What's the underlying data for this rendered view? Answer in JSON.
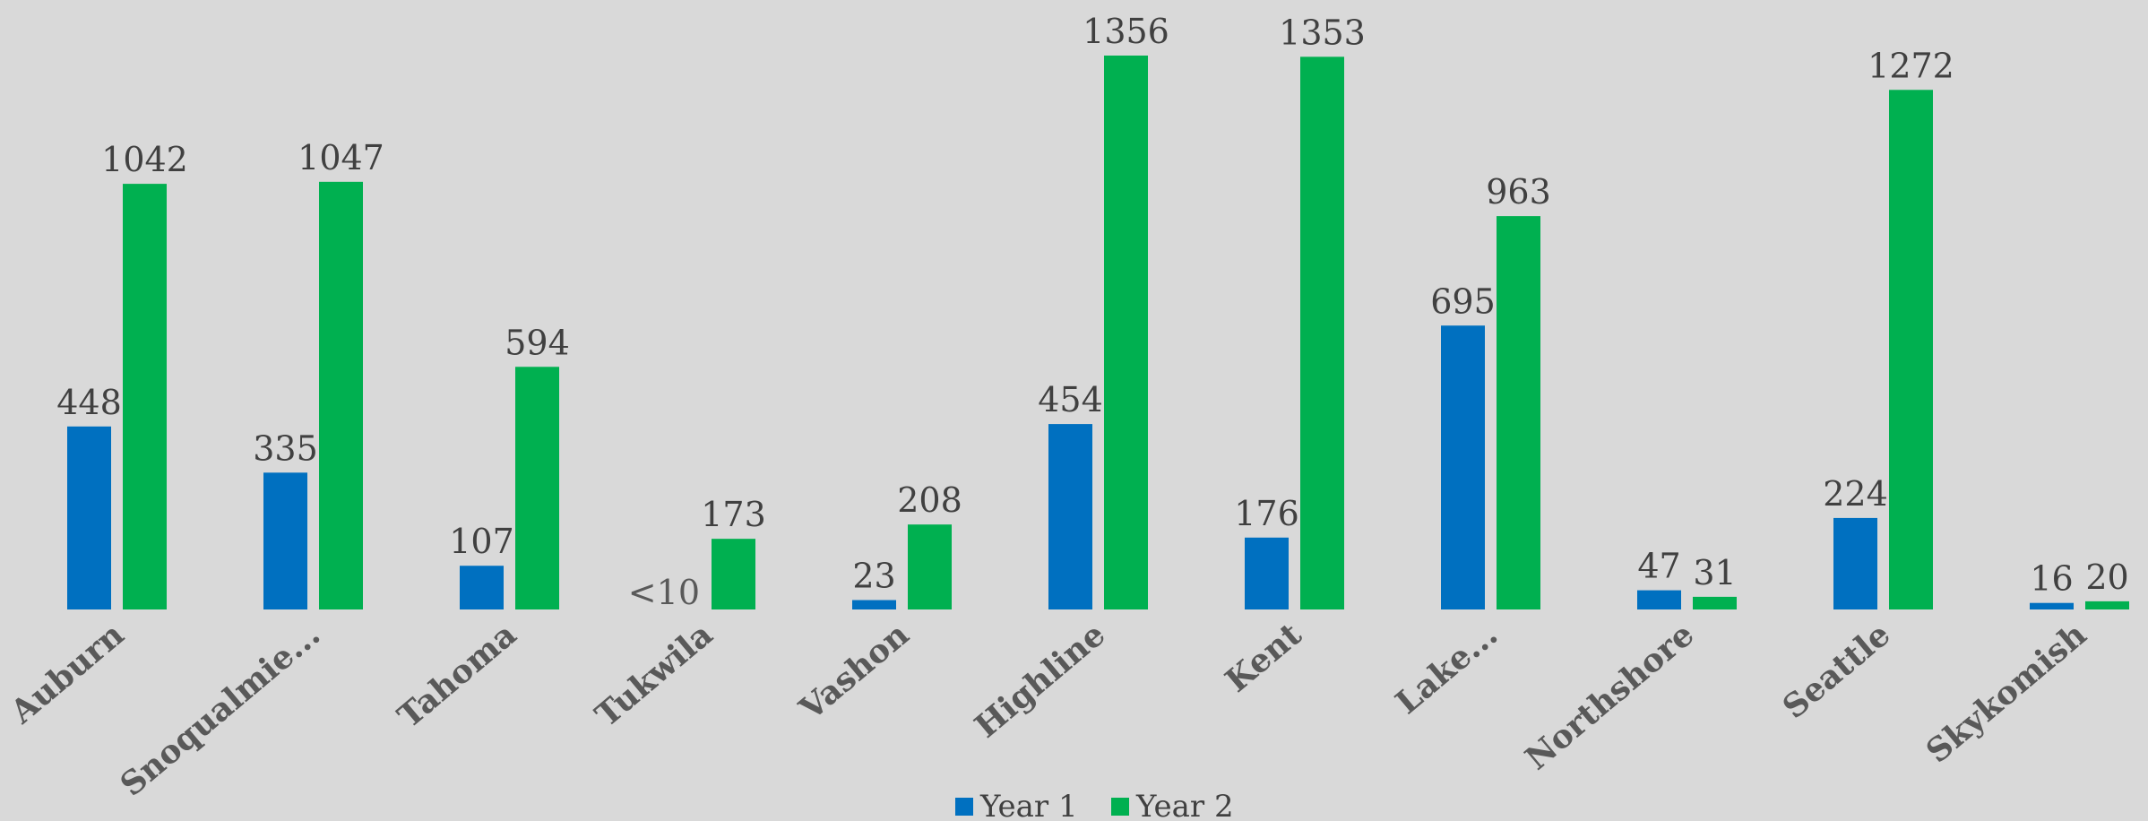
{
  "chart_data": {
    "type": "bar",
    "categories": [
      "Auburn",
      "Snoqualmie...",
      "Tahoma",
      "Tukwila",
      "Vashon",
      "Highline",
      "Kent",
      "Lake...",
      "Northshore",
      "Seattle",
      "Skykomish"
    ],
    "series": [
      {
        "name": "Year 1",
        "color": "#0070c0",
        "values": [
          448,
          335,
          107,
          0,
          23,
          454,
          176,
          695,
          47,
          224,
          16
        ],
        "value_labels": [
          "448",
          "335",
          "107",
          "<10",
          "23",
          "454",
          "176",
          "695",
          "47",
          "224",
          "16"
        ]
      },
      {
        "name": "Year 2",
        "color": "#00b050",
        "values": [
          1042,
          1047,
          594,
          173,
          208,
          1356,
          1353,
          963,
          31,
          1272,
          20
        ]
      }
    ],
    "legend": "bottom"
  }
}
